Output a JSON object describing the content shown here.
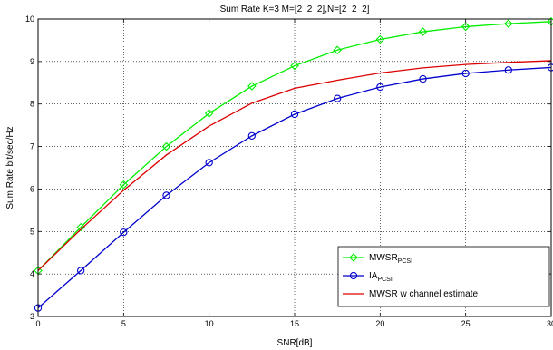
{
  "chart_data": {
    "type": "line",
    "title": "Sum Rate K=3 M=[2  2  2],N=[2  2  2]",
    "xlabel": "SNR[dB]",
    "ylabel": "Sum Rate bit/sec/Hz",
    "xlim": [
      0,
      30
    ],
    "ylim": [
      3,
      10
    ],
    "xticks": [
      0,
      5,
      10,
      15,
      20,
      25,
      30
    ],
    "yticks": [
      3,
      4,
      5,
      6,
      7,
      8,
      9,
      10
    ],
    "grid": true,
    "legend_position": "bottom-right",
    "series": [
      {
        "name": "MWSR",
        "name_sub": "PCSI",
        "color": "#00ee00",
        "marker": "diamond",
        "x": [
          0,
          2.5,
          5,
          7.5,
          10,
          12.5,
          15,
          17.5,
          20,
          22.5,
          25,
          27.5,
          30
        ],
        "y": [
          4.08,
          5.1,
          6.1,
          7.0,
          7.78,
          8.42,
          8.9,
          9.27,
          9.52,
          9.7,
          9.82,
          9.89,
          9.94
        ]
      },
      {
        "name": "IA",
        "name_sub": "PCSI",
        "color": "#0000cc",
        "marker": "circle",
        "x": [
          0,
          2.5,
          5,
          7.5,
          10,
          12.5,
          15,
          17.5,
          20,
          22.5,
          25,
          27.5,
          30
        ],
        "y": [
          3.2,
          4.08,
          4.98,
          5.85,
          6.62,
          7.25,
          7.76,
          8.13,
          8.4,
          8.59,
          8.72,
          8.8,
          8.86
        ]
      },
      {
        "name": "MWSR w channel estimate",
        "name_sub": "",
        "color": "#dd0000",
        "marker": "none",
        "x": [
          0,
          2.5,
          5,
          7.5,
          10,
          12.5,
          15,
          17.5,
          20,
          22.5,
          25,
          27.5,
          30
        ],
        "y": [
          4.08,
          5.05,
          5.97,
          6.8,
          7.48,
          8.02,
          8.37,
          8.56,
          8.73,
          8.85,
          8.93,
          8.98,
          9.02
        ]
      }
    ]
  }
}
